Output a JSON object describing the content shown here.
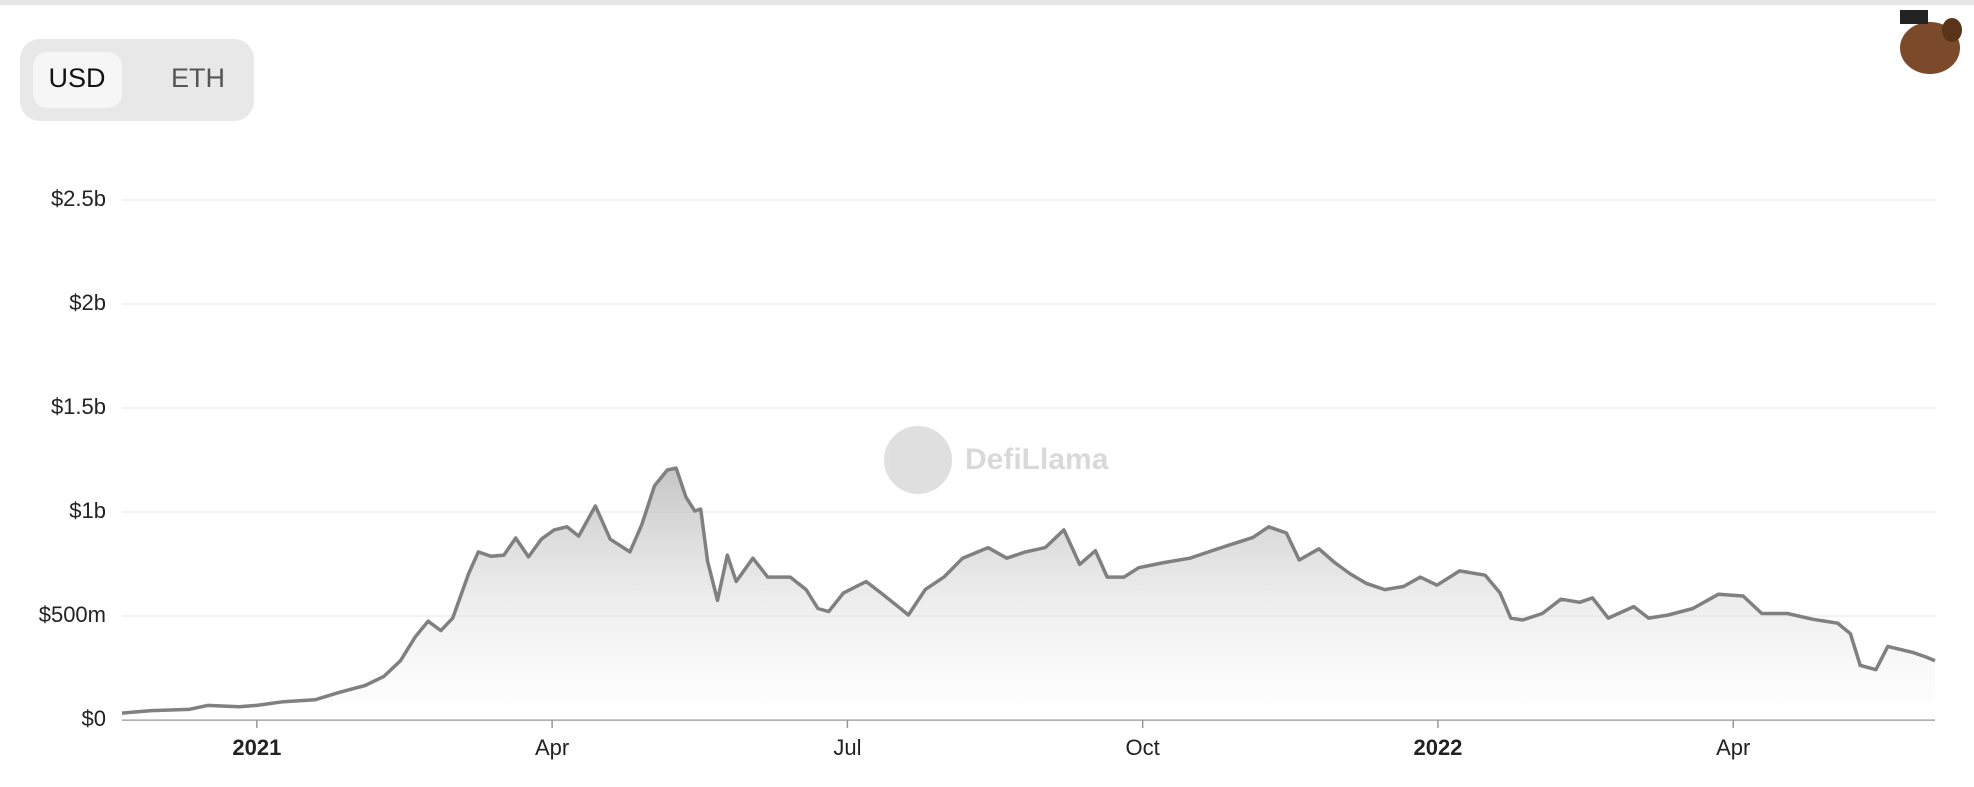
{
  "toggle": [
    "USD",
    "ETH"
  ],
  "watermark": "DefiLlama",
  "chart_data": {
    "type": "area",
    "color": "#808080",
    "x": [
      -1.37,
      -1.07,
      -0.69,
      -0.5,
      -0.18,
      0,
      0.27,
      0.59,
      0.84,
      1.1,
      1.29,
      1.46,
      1.61,
      1.74,
      1.87,
      1.99,
      2.15,
      2.25,
      2.38,
      2.51,
      2.63,
      2.76,
      2.89,
      3.02,
      3.15,
      3.27,
      3.44,
      3.59,
      3.79,
      3.91,
      4.04,
      4.17,
      4.26,
      4.36,
      4.45,
      4.51,
      4.58,
      4.68,
      4.78,
      4.87,
      5.04,
      5.19,
      5.42,
      5.58,
      5.7,
      5.81,
      5.96,
      6.19,
      6.34,
      6.5,
      6.62,
      6.79,
      6.98,
      7.17,
      7.43,
      7.62,
      7.81,
      8.01,
      8.2,
      8.36,
      8.52,
      8.64,
      8.81,
      8.96,
      9.22,
      9.48,
      9.67,
      9.86,
      10.12,
      10.28,
      10.46,
      10.59,
      10.79,
      10.95,
      11.11,
      11.27,
      11.46,
      11.65,
      11.82,
      11.99,
      12.22,
      12.48,
      12.63,
      12.74,
      12.86,
      13.06,
      13.25,
      13.44,
      13.57,
      13.73,
      13.99,
      14.14,
      14.34,
      14.59,
      14.85,
      15.1,
      15.29,
      15.55,
      15.81,
      16.06,
      16.19,
      16.29,
      16.45,
      16.57,
      16.83,
      16.96,
      17.05
    ],
    "values": [
      0.033,
      0.045,
      0.051,
      0.07,
      0.064,
      0.07,
      0.088,
      0.097,
      0.133,
      0.166,
      0.209,
      0.285,
      0.4,
      0.475,
      0.43,
      0.49,
      0.702,
      0.808,
      0.787,
      0.793,
      0.875,
      0.784,
      0.869,
      0.914,
      0.929,
      0.884,
      1.029,
      0.869,
      0.808,
      0.938,
      1.126,
      1.202,
      1.211,
      1.071,
      1.005,
      1.014,
      0.763,
      0.575,
      0.793,
      0.666,
      0.778,
      0.687,
      0.687,
      0.627,
      0.536,
      0.521,
      0.611,
      0.666,
      0.611,
      0.551,
      0.505,
      0.627,
      0.687,
      0.778,
      0.829,
      0.778,
      0.808,
      0.829,
      0.914,
      0.748,
      0.814,
      0.687,
      0.687,
      0.732,
      0.757,
      0.778,
      0.808,
      0.838,
      0.878,
      0.929,
      0.899,
      0.769,
      0.823,
      0.757,
      0.702,
      0.657,
      0.627,
      0.642,
      0.687,
      0.648,
      0.717,
      0.696,
      0.611,
      0.49,
      0.481,
      0.512,
      0.581,
      0.566,
      0.587,
      0.49,
      0.545,
      0.49,
      0.505,
      0.536,
      0.605,
      0.596,
      0.512,
      0.512,
      0.484,
      0.466,
      0.415,
      0.263,
      0.242,
      0.354,
      0.324,
      0.303,
      0.285
    ],
    "xlim": [
      -1.37,
      17.05
    ],
    "xticks": [
      {
        "value": 0,
        "label": "2021"
      },
      {
        "value": 3,
        "label": "Apr"
      },
      {
        "value": 6,
        "label": "Jul"
      },
      {
        "value": 9,
        "label": "Oct"
      },
      {
        "value": 12,
        "label": "2022"
      },
      {
        "value": 15,
        "label": "Apr"
      }
    ],
    "ylim": [
      0,
      2.5
    ],
    "yticks": [
      {
        "value": 0,
        "label": "$0"
      },
      {
        "value": 0.5,
        "label": "$500m"
      },
      {
        "value": 1,
        "label": "$1b"
      },
      {
        "value": 1.5,
        "label": "$1.5b"
      },
      {
        "value": 2,
        "label": "$2b"
      },
      {
        "value": 2.5,
        "label": "$2.5b"
      }
    ],
    "grid": true
  }
}
